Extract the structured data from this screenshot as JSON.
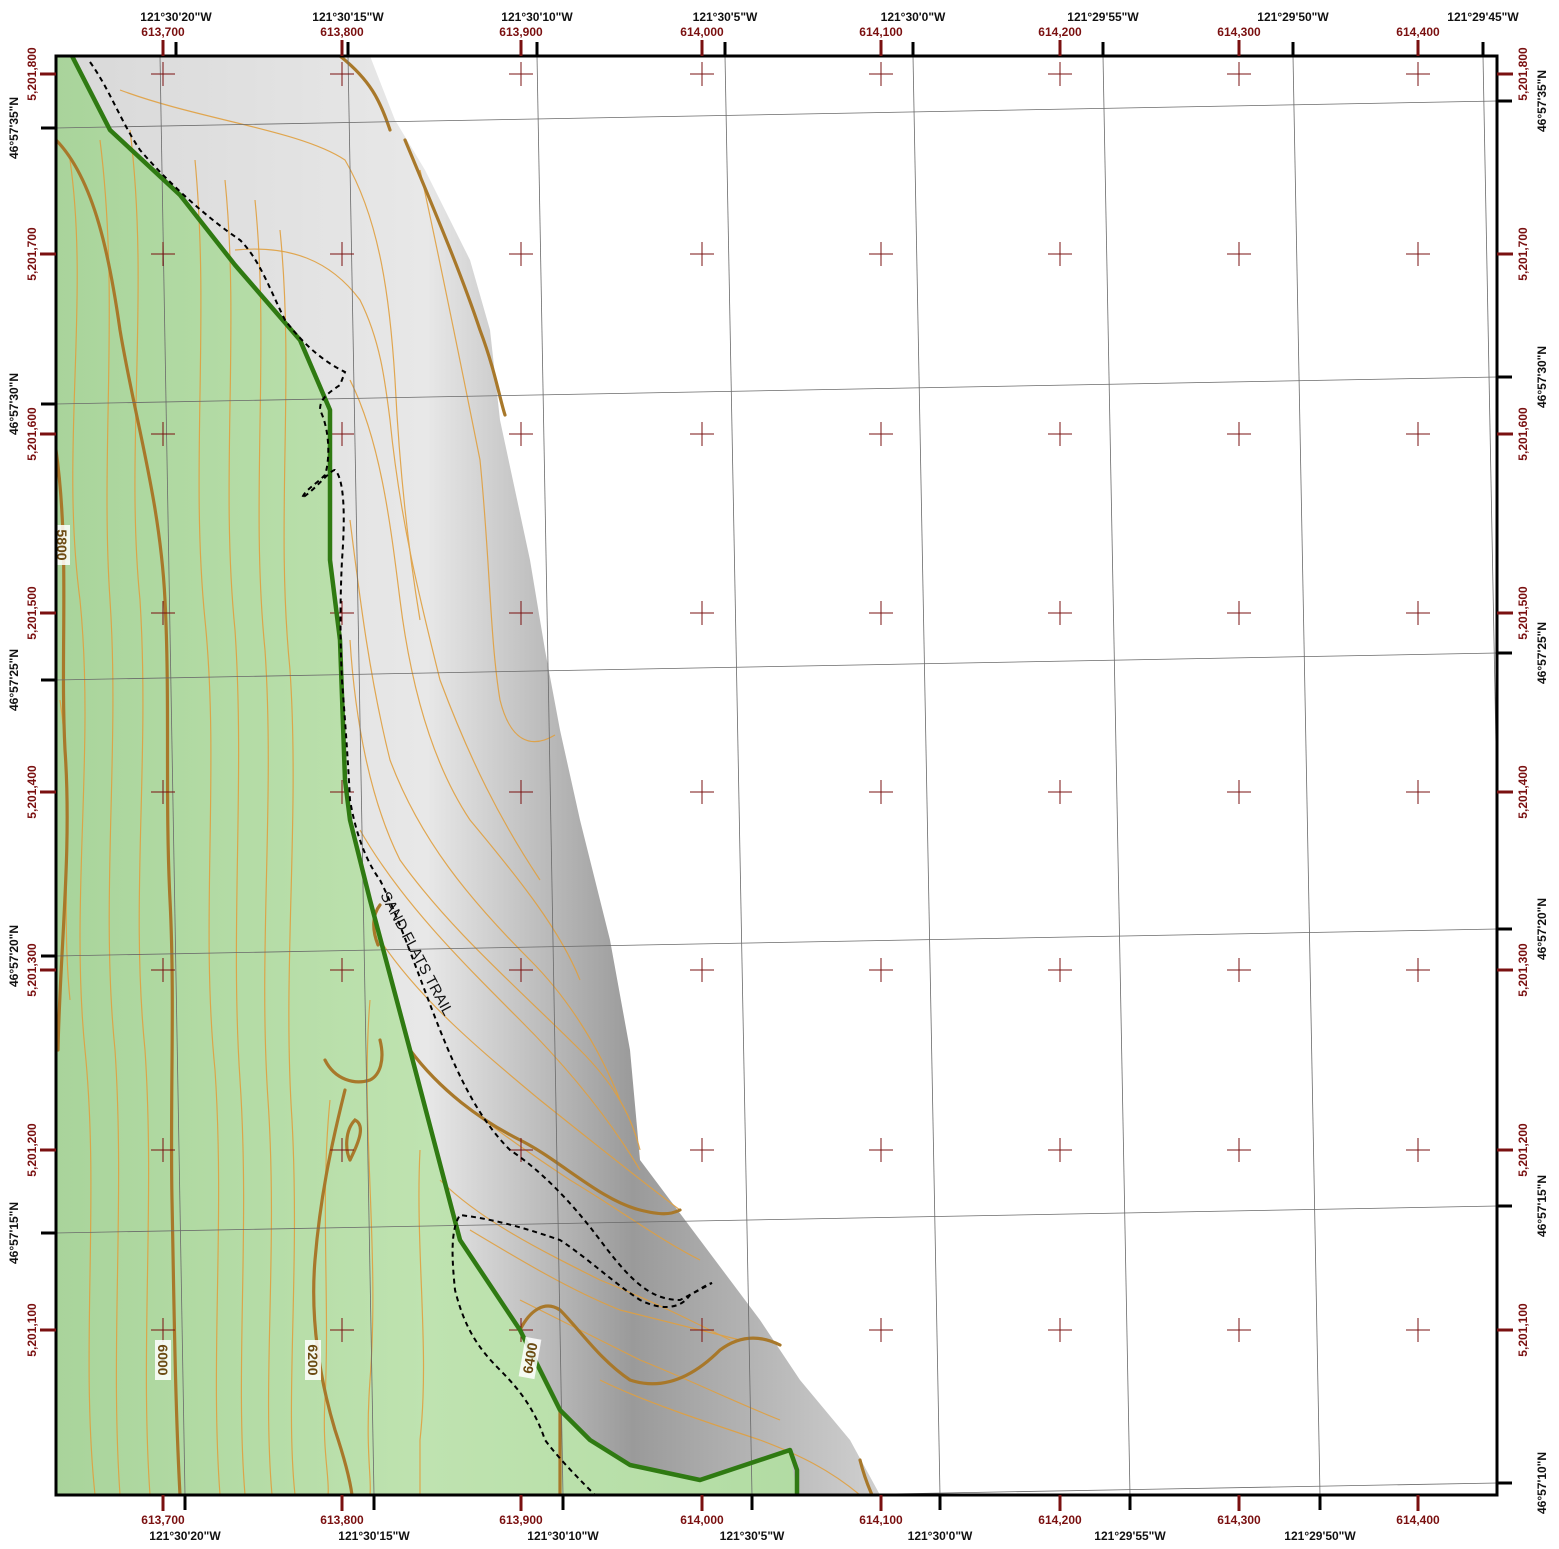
{
  "colors": {
    "frame": "#000000",
    "utm_labels": "#7a1010",
    "geo_labels": "#111111",
    "green_area": "#b8e0a8",
    "green_boundary": "#2f7a12",
    "index_contour": "#a8782a",
    "minor_contour": "#e0a040",
    "graticule": "#6a6a6a",
    "trail": "#000000"
  },
  "utm_eastings": [
    "613,700",
    "613,800",
    "613,900",
    "614,000",
    "614,100",
    "614,200",
    "614,300",
    "614,400"
  ],
  "utm_northings": [
    "5,201,800",
    "5,201,700",
    "5,201,600",
    "5,201,500",
    "5,201,400",
    "5,201,300",
    "5,201,200",
    "5,201,100"
  ],
  "geo_longitudes_top": [
    "121°30'20\"W",
    "121°30'15\"W",
    "121°30'10\"W",
    "121°30'5\"W",
    "121°30'0\"W",
    "121°29'55\"W",
    "121°29'50\"W",
    "121°29'45\"W"
  ],
  "geo_longitudes_bottom": [
    "121°30'20\"W",
    "121°30'15\"W",
    "121°30'10\"W",
    "121°30'5\"W",
    "121°30'0\"W",
    "121°29'55\"W",
    "121°29'50\"W"
  ],
  "geo_latitudes_left": [
    "46°57'35\"N",
    "46°57'30\"N",
    "46°57'25\"N",
    "46°57'20\"N",
    "46°57'15\"N"
  ],
  "geo_latitudes_right": [
    "46°57'35\"N",
    "46°57'30\"N",
    "46°57'25\"N",
    "46°57'20\"N",
    "46°57'15\"N",
    "46°57'10\"N"
  ],
  "contour_labels": [
    "5800",
    "6000",
    "6200",
    "6400"
  ],
  "trail_label": "SAND FLATS TRAIL"
}
